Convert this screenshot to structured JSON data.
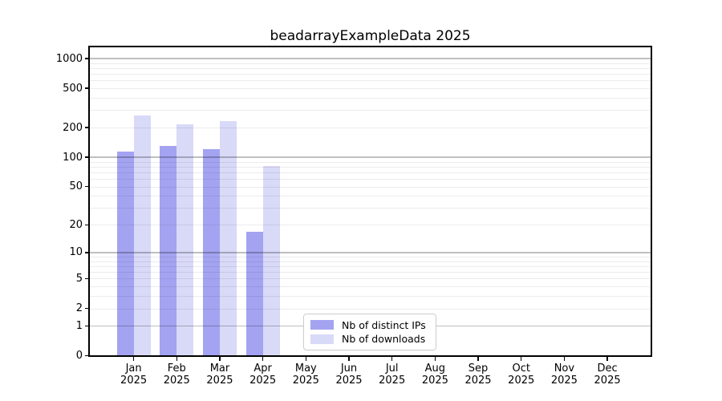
{
  "chart_data": {
    "type": "bar",
    "title": "beadarrayExampleData 2025",
    "categories": [
      "Jan",
      "Feb",
      "Mar",
      "Apr",
      "May",
      "Jun",
      "Jul",
      "Aug",
      "Sep",
      "Oct",
      "Nov",
      "Dec"
    ],
    "category_year": "2025",
    "series": [
      {
        "name": "Nb of distinct IPs",
        "color": "#a3a3f1",
        "values": [
          115,
          130,
          120,
          17,
          null,
          null,
          null,
          null,
          null,
          null,
          null,
          null
        ]
      },
      {
        "name": "Nb of downloads",
        "color": "#d9d9f8",
        "values": [
          265,
          215,
          235,
          82,
          null,
          null,
          null,
          null,
          null,
          null,
          null,
          null
        ]
      }
    ],
    "y_scale": "log1p",
    "ylim": [
      0,
      1300
    ],
    "y_ticks": [
      0,
      1,
      2,
      5,
      10,
      20,
      50,
      100,
      200,
      500,
      1000
    ],
    "y_minor_gridlines": [
      2,
      3,
      4,
      5,
      6,
      7,
      8,
      9,
      20,
      30,
      40,
      50,
      60,
      70,
      80,
      90,
      200,
      300,
      400,
      500,
      600,
      700,
      800,
      900
    ],
    "y_major_gridlines": [
      1,
      10,
      100,
      1000
    ],
    "grid": "on",
    "legend_position": "lower center-left",
    "colors": {
      "distinct_ips_bar": "#a3a3f1",
      "downloads_bar": "#d9d9f8",
      "major_grid": "rgba(0,0,0,0.25)",
      "minor_grid": "rgba(0,0,0,0.075)",
      "spine": "#000000",
      "legend_border": "#cccccc",
      "text": "#000000"
    }
  }
}
